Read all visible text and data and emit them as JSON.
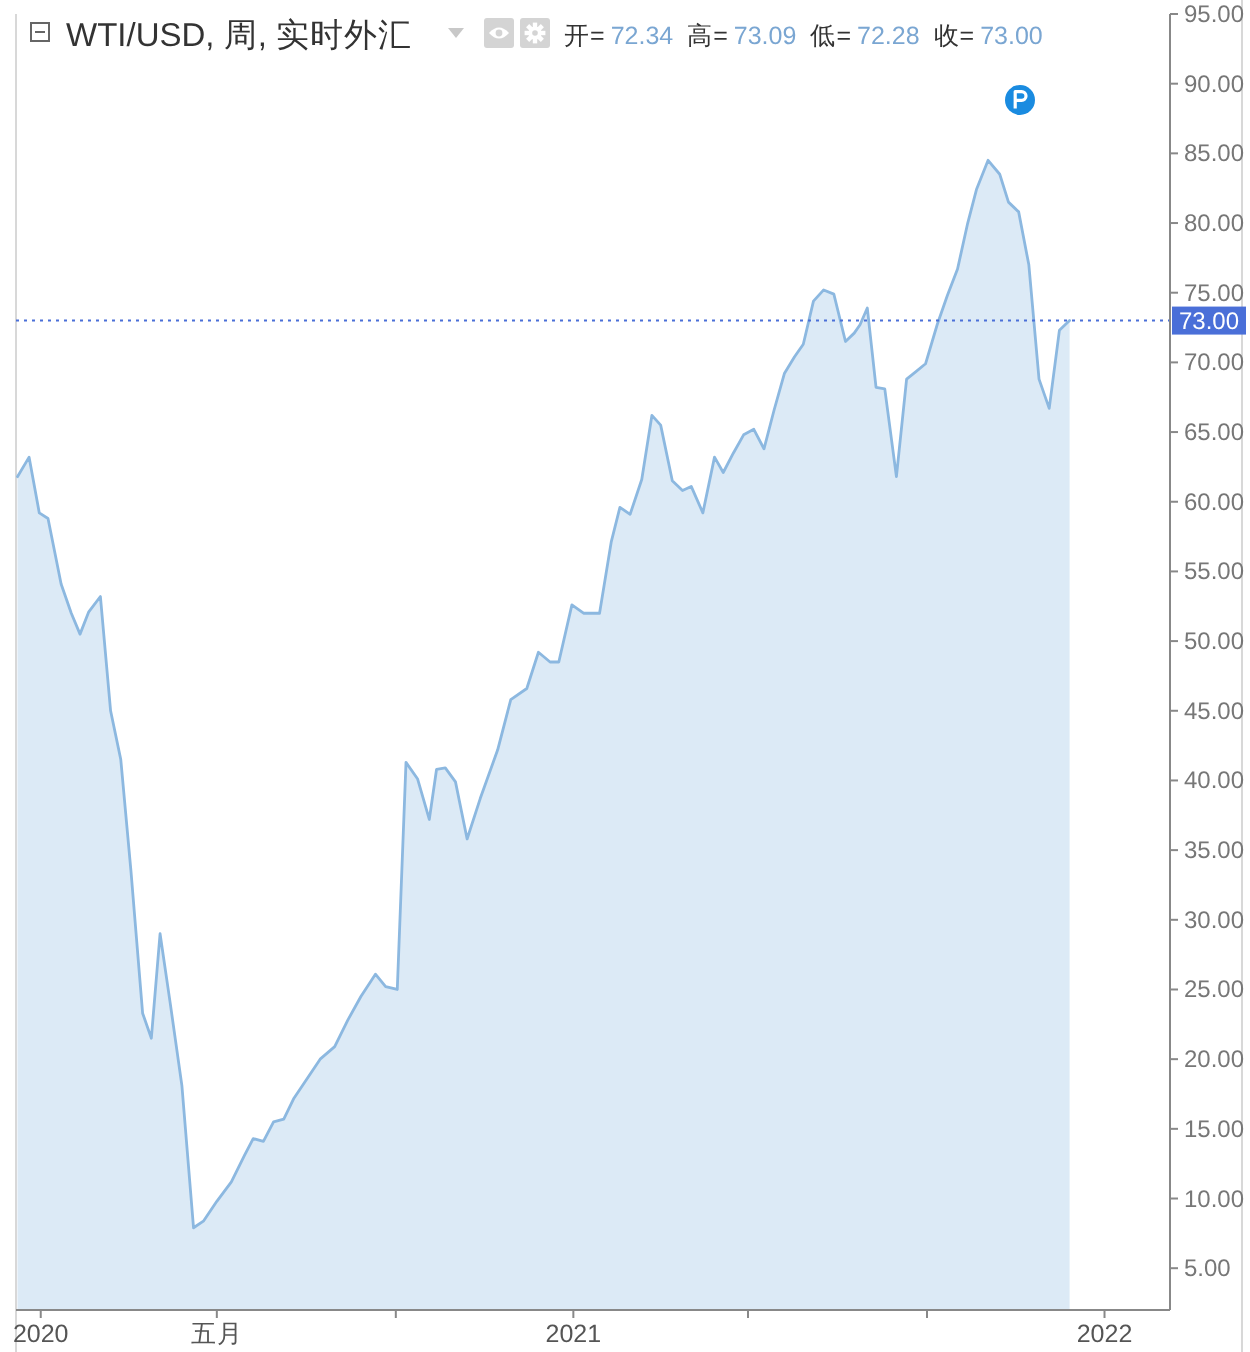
{
  "chart_data": {
    "type": "area",
    "title": "WTI/USD, 周, 实时外汇",
    "subtitle": "开= 72.34 高= 73.09 低= 72.28 收= 73.00",
    "x": [
      "2019-12-16",
      "2019-12-24",
      "2019-12-31",
      "2020-01-06",
      "2020-01-15",
      "2020-01-22",
      "2020-01-28",
      "2020-02-03",
      "2020-02-11",
      "2020-02-18",
      "2020-02-25",
      "2020-03-03",
      "2020-03-11",
      "2020-03-17",
      "2020-03-23",
      "2020-03-30",
      "2020-04-07",
      "2020-04-15",
      "2020-04-22",
      "2020-05-01",
      "2020-05-11",
      "2020-05-20",
      "2020-05-26",
      "2020-06-02",
      "2020-06-09",
      "2020-06-16",
      "2020-06-23",
      "2020-07-02",
      "2020-07-11",
      "2020-07-21",
      "2020-07-30",
      "2020-08-08",
      "2020-08-18",
      "2020-08-25",
      "2020-09-02",
      "2020-09-08",
      "2020-09-16",
      "2020-09-24",
      "2020-09-29",
      "2020-10-05",
      "2020-10-12",
      "2020-10-20",
      "2020-10-29",
      "2020-11-10",
      "2020-11-19",
      "2020-11-30",
      "2020-12-08",
      "2020-12-16",
      "2020-12-22",
      "2020-12-31",
      "2021-01-08",
      "2021-01-19",
      "2021-01-27",
      "2021-02-02",
      "2021-02-09",
      "2021-02-17",
      "2021-02-24",
      "2021-03-02",
      "2021-03-10",
      "2021-03-17",
      "2021-03-23",
      "2021-03-31",
      "2021-04-08",
      "2021-04-14",
      "2021-04-21",
      "2021-04-28",
      "2021-05-05",
      "2021-05-12",
      "2021-05-19",
      "2021-05-26",
      "2021-06-02",
      "2021-06-08",
      "2021-06-15",
      "2021-06-22",
      "2021-06-29",
      "2021-07-07",
      "2021-07-13",
      "2021-07-17",
      "2021-07-22",
      "2021-07-28",
      "2021-08-03",
      "2021-08-11",
      "2021-08-18",
      "2021-08-24",
      "2021-08-31",
      "2021-09-08",
      "2021-09-15",
      "2021-09-22",
      "2021-09-29",
      "2021-10-05",
      "2021-10-13",
      "2021-10-21",
      "2021-10-27",
      "2021-11-03",
      "2021-11-10",
      "2021-11-17",
      "2021-11-24",
      "2021-12-01",
      "2021-12-08"
    ],
    "series": [
      {
        "color": "#8cb8e0",
        "values": [
          61.8,
          63.2,
          59.2,
          58.8,
          54.1,
          52.0,
          50.5,
          52.1,
          53.2,
          45.0,
          41.5,
          33.5,
          23.3,
          21.5,
          29.0,
          24.0,
          18.1,
          7.9,
          8.4,
          9.8,
          11.2,
          13.1,
          14.3,
          14.1,
          15.5,
          15.7,
          17.2,
          18.6,
          20.0,
          20.9,
          22.8,
          24.5,
          26.1,
          25.2,
          25.0,
          41.3,
          40.1,
          37.2,
          40.8,
          40.9,
          39.9,
          35.8,
          38.7,
          42.2,
          45.8,
          46.6,
          49.2,
          48.5,
          48.5,
          52.6,
          52.0,
          52.0,
          57.1,
          59.6,
          59.1,
          61.6,
          66.2,
          65.5,
          61.5,
          60.8,
          61.1,
          59.2,
          63.2,
          62.1,
          63.5,
          64.8,
          65.2,
          63.8,
          66.6,
          69.2,
          70.4,
          71.3,
          74.4,
          75.2,
          74.9,
          71.5,
          72.1,
          72.7,
          73.9,
          68.2,
          68.1,
          61.8,
          68.8,
          69.3,
          69.9,
          72.7,
          74.8,
          76.7,
          80.0,
          82.4,
          84.5,
          83.5,
          81.5,
          80.8,
          77.0,
          68.8,
          66.7,
          72.3,
          73.0
        ]
      }
    ],
    "xlim": [
      "2019-12-15",
      "2022-02-15"
    ],
    "xticks": [
      {
        "value": "2020-01-01",
        "label": "2020"
      },
      {
        "value": "2020-05-01",
        "label": "五月"
      },
      {
        "value": "2020-09-01",
        "label": null
      },
      {
        "value": "2021-01-01",
        "label": "2021"
      },
      {
        "value": "2021-05-01",
        "label": null
      },
      {
        "value": "2021-09-01",
        "label": null
      },
      {
        "value": "2022-01-01",
        "label": "2022"
      }
    ],
    "ylim": [
      2,
      95
    ],
    "yticks": [
      {
        "value": 5,
        "label": "5.00"
      },
      {
        "value": 10,
        "label": "10.00"
      },
      {
        "value": 15,
        "label": "15.00"
      },
      {
        "value": 20,
        "label": "20.00"
      },
      {
        "value": 25,
        "label": "25.00"
      },
      {
        "value": 30,
        "label": "30.00"
      },
      {
        "value": 35,
        "label": "35.00"
      },
      {
        "value": 40,
        "label": "40.00"
      },
      {
        "value": 45,
        "label": "45.00"
      },
      {
        "value": 50,
        "label": "50.00"
      },
      {
        "value": 55,
        "label": "55.00"
      },
      {
        "value": 60,
        "label": "60.00"
      },
      {
        "value": 65,
        "label": "65.00"
      },
      {
        "value": 70,
        "label": "70.00"
      },
      {
        "value": 75,
        "label": "75.00"
      },
      {
        "value": 80,
        "label": "80.00"
      },
      {
        "value": 85,
        "label": "85.00"
      },
      {
        "value": 90,
        "label": "90.00"
      },
      {
        "value": 95,
        "label": "95.00"
      }
    ],
    "ref_lines": [
      {
        "axis": "y",
        "value": 73,
        "label": "73.00",
        "color": "#4a6fd8",
        "line_style": "dotted"
      }
    ]
  }
}
